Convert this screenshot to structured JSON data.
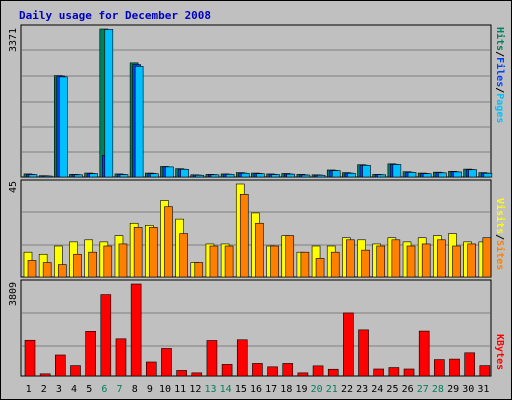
{
  "title": "Daily usage for December 2008",
  "colors": {
    "background": "#c0c0c0",
    "panel": "#c0c0c0",
    "gridline": "#808080",
    "title": "#0000c0",
    "hits": "#00805c",
    "files": "#0040ff",
    "pages": "#00c0ff",
    "visits": "#ffff00",
    "sites": "#ff8000",
    "kbytes": "#ff0000",
    "weekend_label": "#00805c",
    "weekday_label": "#000000"
  },
  "labels": {
    "top_max": "3371",
    "mid_max": "45",
    "bot_max": "3809",
    "top_right_hits": "Hits",
    "top_right_files": "Files",
    "top_right_pages": "Pages",
    "mid_right_visits": "Visits",
    "mid_right_sites": "Sites",
    "bot_right_kbytes": "KBytes",
    "slash": "/"
  },
  "chart_data": [
    {
      "type": "bar",
      "panel": "hits-files-pages",
      "categories": [
        "1",
        "2",
        "3",
        "4",
        "5",
        "6",
        "7",
        "8",
        "9",
        "10",
        "11",
        "12",
        "13",
        "14",
        "15",
        "16",
        "17",
        "18",
        "19",
        "20",
        "21",
        "22",
        "23",
        "24",
        "25",
        "26",
        "27",
        "28",
        "29",
        "30",
        "31"
      ],
      "weekend_days": [
        "6",
        "7",
        "13",
        "14",
        "20",
        "21",
        "27",
        "28"
      ],
      "ylim": [
        0,
        3371
      ],
      "series": [
        {
          "name": "Hits",
          "values": [
            70,
            30,
            2310,
            60,
            90,
            3371,
            70,
            2600,
            90,
            240,
            190,
            50,
            60,
            70,
            100,
            90,
            70,
            80,
            60,
            50,
            160,
            100,
            280,
            60,
            300,
            120,
            90,
            110,
            130,
            180,
            100
          ]
        },
        {
          "name": "Files",
          "values": [
            60,
            25,
            2300,
            55,
            80,
            490,
            60,
            2560,
            80,
            230,
            180,
            45,
            55,
            65,
            90,
            80,
            60,
            70,
            50,
            45,
            150,
            90,
            270,
            55,
            290,
            110,
            80,
            100,
            120,
            170,
            90
          ]
        },
        {
          "name": "Pages",
          "values": [
            55,
            20,
            2280,
            50,
            75,
            3360,
            55,
            2520,
            75,
            230,
            175,
            40,
            50,
            60,
            85,
            75,
            55,
            65,
            45,
            40,
            145,
            85,
            265,
            50,
            285,
            105,
            75,
            95,
            115,
            165,
            85
          ]
        }
      ]
    },
    {
      "type": "bar",
      "panel": "visits-sites",
      "categories": [
        "1",
        "2",
        "3",
        "4",
        "5",
        "6",
        "7",
        "8",
        "9",
        "10",
        "11",
        "12",
        "13",
        "14",
        "15",
        "16",
        "17",
        "18",
        "19",
        "20",
        "21",
        "22",
        "23",
        "24",
        "25",
        "26",
        "27",
        "28",
        "29",
        "30",
        "31"
      ],
      "ylim": [
        0,
        45
      ],
      "series": [
        {
          "name": "Visits",
          "values": [
            12,
            11,
            15,
            17,
            18,
            17,
            20,
            26,
            25,
            37,
            28,
            7,
            16,
            16,
            45,
            31,
            15,
            20,
            12,
            15,
            15,
            19,
            18,
            16,
            19,
            17,
            19,
            20,
            21,
            17,
            17
          ]
        },
        {
          "name": "Sites",
          "values": [
            8,
            7,
            6,
            11,
            12,
            15,
            16,
            24,
            24,
            34,
            21,
            7,
            15,
            15,
            40,
            26,
            15,
            20,
            12,
            9,
            12,
            18,
            13,
            15,
            18,
            15,
            16,
            18,
            15,
            16,
            19
          ]
        }
      ]
    },
    {
      "type": "bar",
      "panel": "kbytes",
      "categories": [
        "1",
        "2",
        "3",
        "4",
        "5",
        "6",
        "7",
        "8",
        "9",
        "10",
        "11",
        "12",
        "13",
        "14",
        "15",
        "16",
        "17",
        "18",
        "19",
        "20",
        "21",
        "22",
        "23",
        "24",
        "25",
        "26",
        "27",
        "28",
        "29",
        "30",
        "31"
      ],
      "ylim": [
        0,
        3809
      ],
      "series": [
        {
          "name": "KBytes",
          "values": [
            1480,
            90,
            870,
            430,
            1850,
            3370,
            1540,
            3809,
            580,
            1140,
            230,
            130,
            1470,
            480,
            1500,
            520,
            380,
            520,
            130,
            420,
            280,
            2610,
            1910,
            290,
            350,
            290,
            1860,
            680,
            700,
            960,
            430
          ]
        }
      ]
    }
  ]
}
